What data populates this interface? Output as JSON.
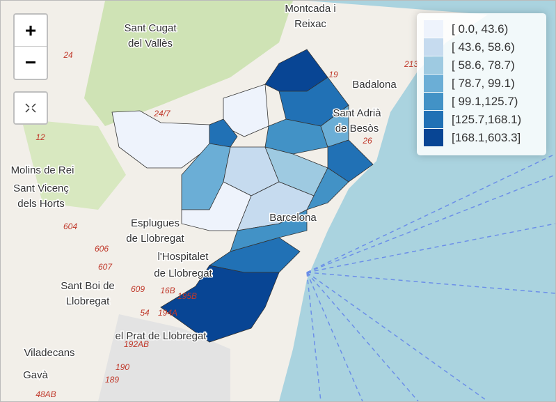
{
  "controls": {
    "zoom_in": "+",
    "zoom_out": "−"
  },
  "legend": {
    "items": [
      {
        "label": "[ 0.0, 43.6)",
        "color": "#eef3fc"
      },
      {
        "label": "[ 43.6, 58.6)",
        "color": "#c6dbef"
      },
      {
        "label": "[ 58.6, 78.7)",
        "color": "#9ecae1"
      },
      {
        "label": "[ 78.7, 99.1)",
        "color": "#6baed6"
      },
      {
        "label": "[ 99.1,125.7)",
        "color": "#4292c6"
      },
      {
        "label": "[125.7,168.1)",
        "color": "#2171b5"
      },
      {
        "label": "[168.1,603.3]",
        "color": "#084594"
      }
    ]
  },
  "places": [
    {
      "lines": [
        "Sant Cugat",
        "del Vallès"
      ]
    },
    {
      "lines": [
        "Montcada i",
        "Reixac"
      ]
    },
    {
      "lines": [
        "Badalona"
      ]
    },
    {
      "lines": [
        "Sant Adrià",
        "de Besòs"
      ]
    },
    {
      "lines": [
        "Molins de Rei"
      ]
    },
    {
      "lines": [
        "Sant Vicenç",
        "dels Horts"
      ]
    },
    {
      "lines": [
        "Esplugues",
        "de Llobregat"
      ]
    },
    {
      "lines": [
        "l'Hospitalet",
        "de Llobregat"
      ]
    },
    {
      "lines": [
        "Sant Boi de",
        "Llobregat"
      ]
    },
    {
      "lines": [
        "el Prat de Llobregat"
      ]
    },
    {
      "lines": [
        "Viladecans"
      ]
    },
    {
      "lines": [
        "Gavà"
      ]
    },
    {
      "lines": [
        "Barcelona"
      ]
    }
  ],
  "roads": [
    "24",
    "12",
    "604",
    "606",
    "607",
    "609",
    "16B",
    "195B",
    "54",
    "194A",
    "192AB",
    "190",
    "189",
    "48AB",
    "26",
    "19",
    "213",
    "24/7"
  ]
}
